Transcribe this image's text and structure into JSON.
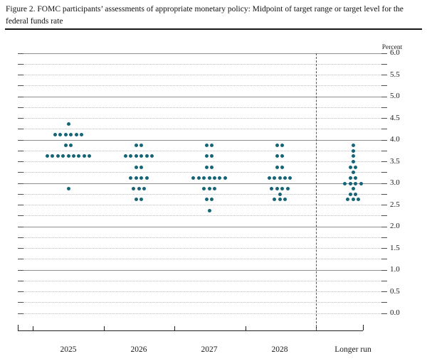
{
  "figure": {
    "title": "Figure 2. FOMC participants’ assessments of appropriate monetary policy: Midpoint of target range or target level for the federal funds rate"
  },
  "chart_data": {
    "type": "scatter",
    "title": "FOMC participants’ assessments of appropriate monetary policy: Midpoint of target range or target level for the federal funds rate",
    "unit_label": "Percent",
    "ylabel": "Percent",
    "ylim": [
      0.0,
      6.0
    ],
    "y_tick_step": 0.5,
    "y_grid_step": 0.25,
    "y_tick_labels": [
      "6.0",
      "5.5",
      "5.0",
      "4.5",
      "4.0",
      "3.5",
      "3.0",
      "2.5",
      "2.0",
      "1.5",
      "1.0",
      "0.5",
      "0.0"
    ],
    "categories": [
      "2025",
      "2026",
      "2027",
      "2028",
      "Longer run"
    ],
    "separator_before": "Longer run",
    "dots_per_column": 19,
    "series": [
      {
        "name": "2025",
        "dots": [
          {
            "value": 4.375,
            "count": 1
          },
          {
            "value": 4.125,
            "count": 6
          },
          {
            "value": 3.875,
            "count": 2
          },
          {
            "value": 3.625,
            "count": 9
          },
          {
            "value": 2.875,
            "count": 1
          }
        ]
      },
      {
        "name": "2026",
        "dots": [
          {
            "value": 3.875,
            "count": 2
          },
          {
            "value": 3.625,
            "count": 6
          },
          {
            "value": 3.375,
            "count": 2
          },
          {
            "value": 3.125,
            "count": 4
          },
          {
            "value": 2.875,
            "count": 3
          },
          {
            "value": 2.625,
            "count": 2
          }
        ]
      },
      {
        "name": "2027",
        "dots": [
          {
            "value": 3.875,
            "count": 2
          },
          {
            "value": 3.625,
            "count": 2
          },
          {
            "value": 3.375,
            "count": 2
          },
          {
            "value": 3.125,
            "count": 7
          },
          {
            "value": 2.875,
            "count": 3
          },
          {
            "value": 2.625,
            "count": 2
          },
          {
            "value": 2.375,
            "count": 1
          }
        ]
      },
      {
        "name": "2028",
        "dots": [
          {
            "value": 3.875,
            "count": 2
          },
          {
            "value": 3.625,
            "count": 2
          },
          {
            "value": 3.375,
            "count": 2
          },
          {
            "value": 3.125,
            "count": 5
          },
          {
            "value": 2.875,
            "count": 4
          },
          {
            "value": 2.75,
            "count": 1
          },
          {
            "value": 2.625,
            "count": 3
          }
        ]
      },
      {
        "name": "Longer run",
        "dots": [
          {
            "value": 3.875,
            "count": 1
          },
          {
            "value": 3.75,
            "count": 1
          },
          {
            "value": 3.625,
            "count": 1
          },
          {
            "value": 3.5,
            "count": 1
          },
          {
            "value": 3.375,
            "count": 2
          },
          {
            "value": 3.25,
            "count": 1
          },
          {
            "value": 3.125,
            "count": 2
          },
          {
            "value": 3.0,
            "count": 4
          },
          {
            "value": 2.875,
            "count": 1
          },
          {
            "value": 2.75,
            "count": 2
          },
          {
            "value": 2.625,
            "count": 3
          }
        ]
      }
    ]
  },
  "colors": {
    "dot": "#156577",
    "grid_major": "#8f8f8f",
    "grid_minor": "#bdbdbd",
    "grid_end_tick": "#4f4f4f",
    "axis": "#222222",
    "background": "#ffffff"
  }
}
